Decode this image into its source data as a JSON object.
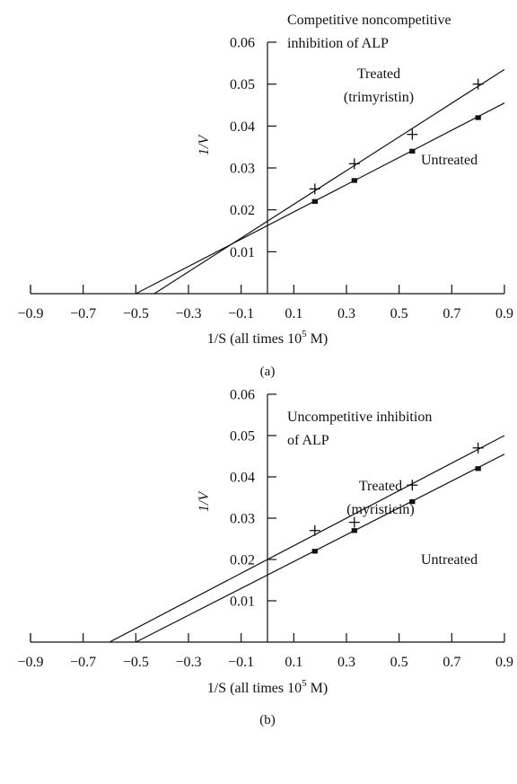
{
  "chart_data": [
    {
      "type": "line",
      "panel_label": "(a)",
      "title": [
        "Competitive noncompetitive",
        "inhibition of ALP"
      ],
      "xlabel": {
        "main": "1/S (all times 10",
        "exp": "5",
        "unit": " M)"
      },
      "ylabel": "1/V",
      "xlim": [
        -0.9,
        0.9
      ],
      "ylim": [
        0,
        0.06
      ],
      "x_ticks": [
        "-0.9",
        "-0.7",
        "-0.5",
        "-0.3",
        "-0.1",
        "0.1",
        "0.3",
        "0.5",
        "0.7",
        "0.9"
      ],
      "y_ticks": [
        "0.01",
        "0.02",
        "0.03",
        "0.04",
        "0.05",
        "0.06"
      ],
      "series": [
        {
          "name": "Untreated",
          "marker": "dot",
          "x": [
            0.18,
            0.33,
            0.55,
            0.8
          ],
          "y": [
            0.022,
            0.027,
            0.034,
            0.042
          ],
          "line_x": [
            -0.5,
            0.9
          ],
          "line_y": [
            0.0,
            0.0455
          ]
        },
        {
          "name_lines": [
            "Treated",
            "(trimyristin)"
          ],
          "marker": "plus",
          "x": [
            0.18,
            0.33,
            0.55,
            0.8
          ],
          "y": [
            0.025,
            0.031,
            0.038,
            0.05
          ],
          "line_x": [
            -0.43,
            0.9
          ],
          "line_y": [
            0.0,
            0.0535
          ]
        }
      ]
    },
    {
      "type": "line",
      "panel_label": "(b)",
      "title": [
        "Uncompetitive inhibition",
        "of ALP"
      ],
      "xlabel": {
        "main": "1/S (all times 10",
        "exp": "5",
        "unit": " M)"
      },
      "ylabel": "1/V",
      "xlim": [
        -0.9,
        0.9
      ],
      "ylim": [
        0,
        0.06
      ],
      "x_ticks": [
        "-0.9",
        "-0.7",
        "-0.5",
        "-0.3",
        "-0.1",
        "0.1",
        "0.3",
        "0.5",
        "0.7",
        "0.9"
      ],
      "y_ticks": [
        "0.01",
        "0.02",
        "0.03",
        "0.04",
        "0.05",
        "0.06"
      ],
      "series": [
        {
          "name": "Untreated",
          "marker": "dot",
          "x": [
            0.18,
            0.33,
            0.55,
            0.8
          ],
          "y": [
            0.022,
            0.027,
            0.034,
            0.042
          ],
          "line_x": [
            -0.5,
            0.9
          ],
          "line_y": [
            0.0,
            0.0455
          ]
        },
        {
          "name_lines": [
            "Treated",
            "(myristicin)"
          ],
          "marker": "plus",
          "x": [
            0.18,
            0.33,
            0.55,
            0.8
          ],
          "y": [
            0.027,
            0.029,
            0.038,
            0.047
          ],
          "line_x": [
            -0.6,
            0.9
          ],
          "line_y": [
            0.0,
            0.05
          ]
        }
      ]
    }
  ]
}
